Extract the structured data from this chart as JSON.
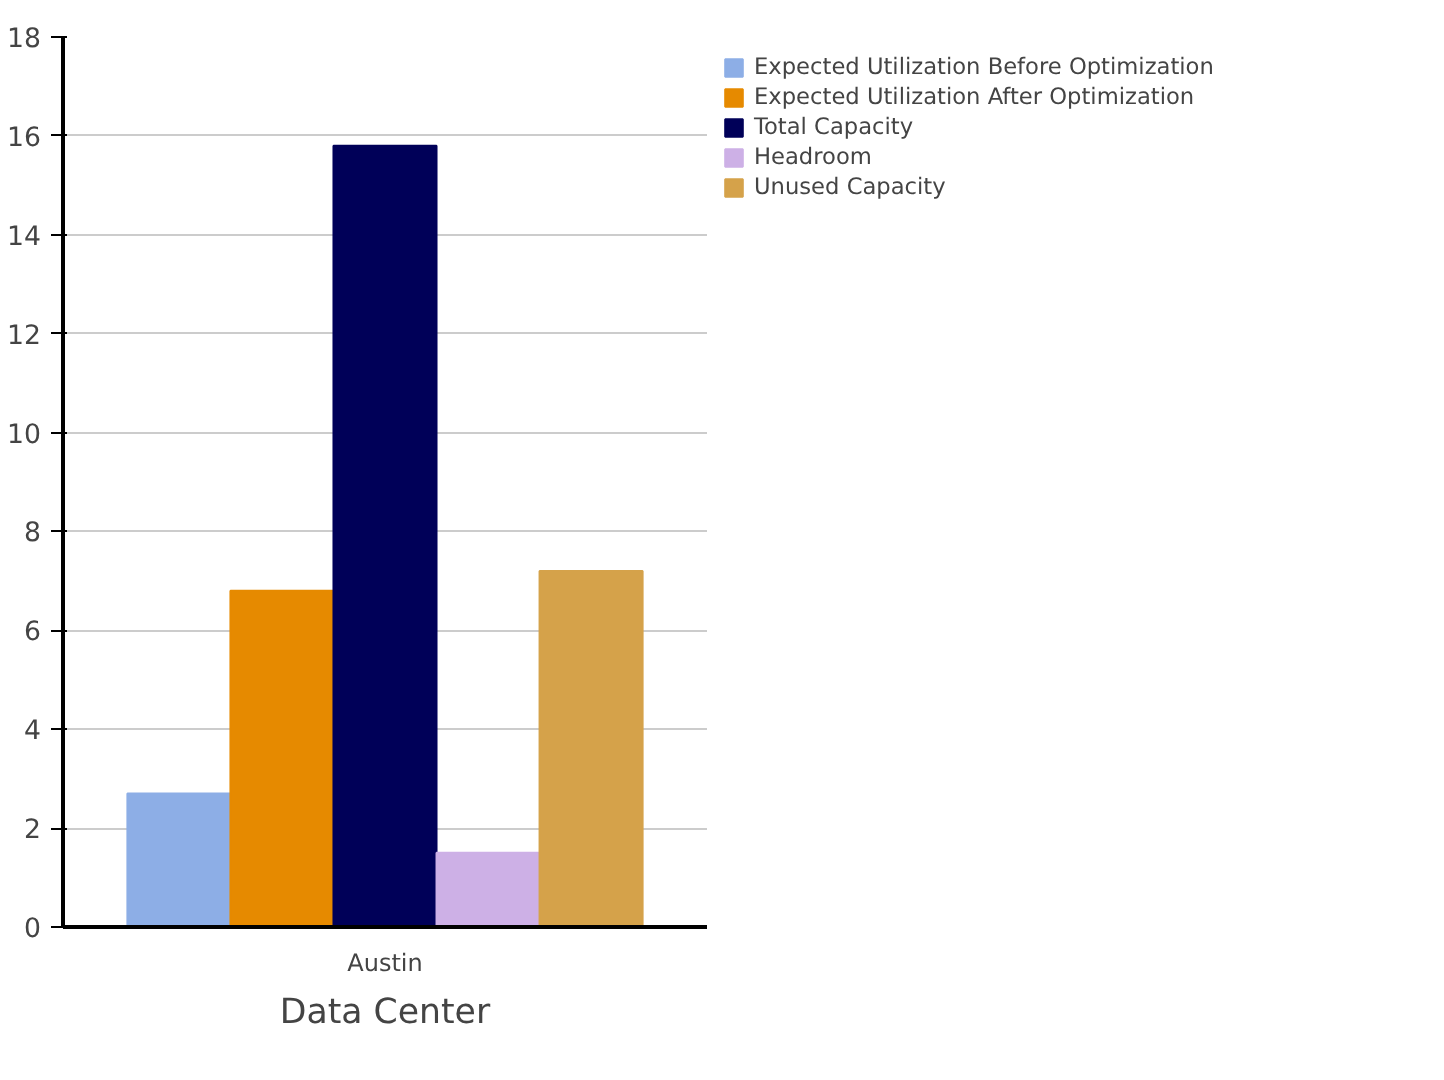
{
  "chart_data": {
    "type": "bar",
    "xlabel": "Data Center",
    "categories": [
      "Austin"
    ],
    "series": [
      {
        "name": "Expected Utilization Before Optimization",
        "color": "#8daee6",
        "values": [
          2.7
        ]
      },
      {
        "name": "Expected Utilization After Optimization",
        "color": "#e68a00",
        "values": [
          6.8
        ]
      },
      {
        "name": "Total Capacity",
        "color": "#000058",
        "values": [
          15.8
        ]
      },
      {
        "name": "Headroom",
        "color": "#cdb0e6",
        "values": [
          1.5
        ]
      },
      {
        "name": "Unused Capacity",
        "color": "#d5a24a",
        "values": [
          7.2
        ]
      }
    ],
    "ylim": [
      0,
      18
    ],
    "yticks": [
      0,
      2,
      4,
      6,
      8,
      10,
      12,
      14,
      16,
      18
    ],
    "grid": "y",
    "legend": "top right"
  }
}
